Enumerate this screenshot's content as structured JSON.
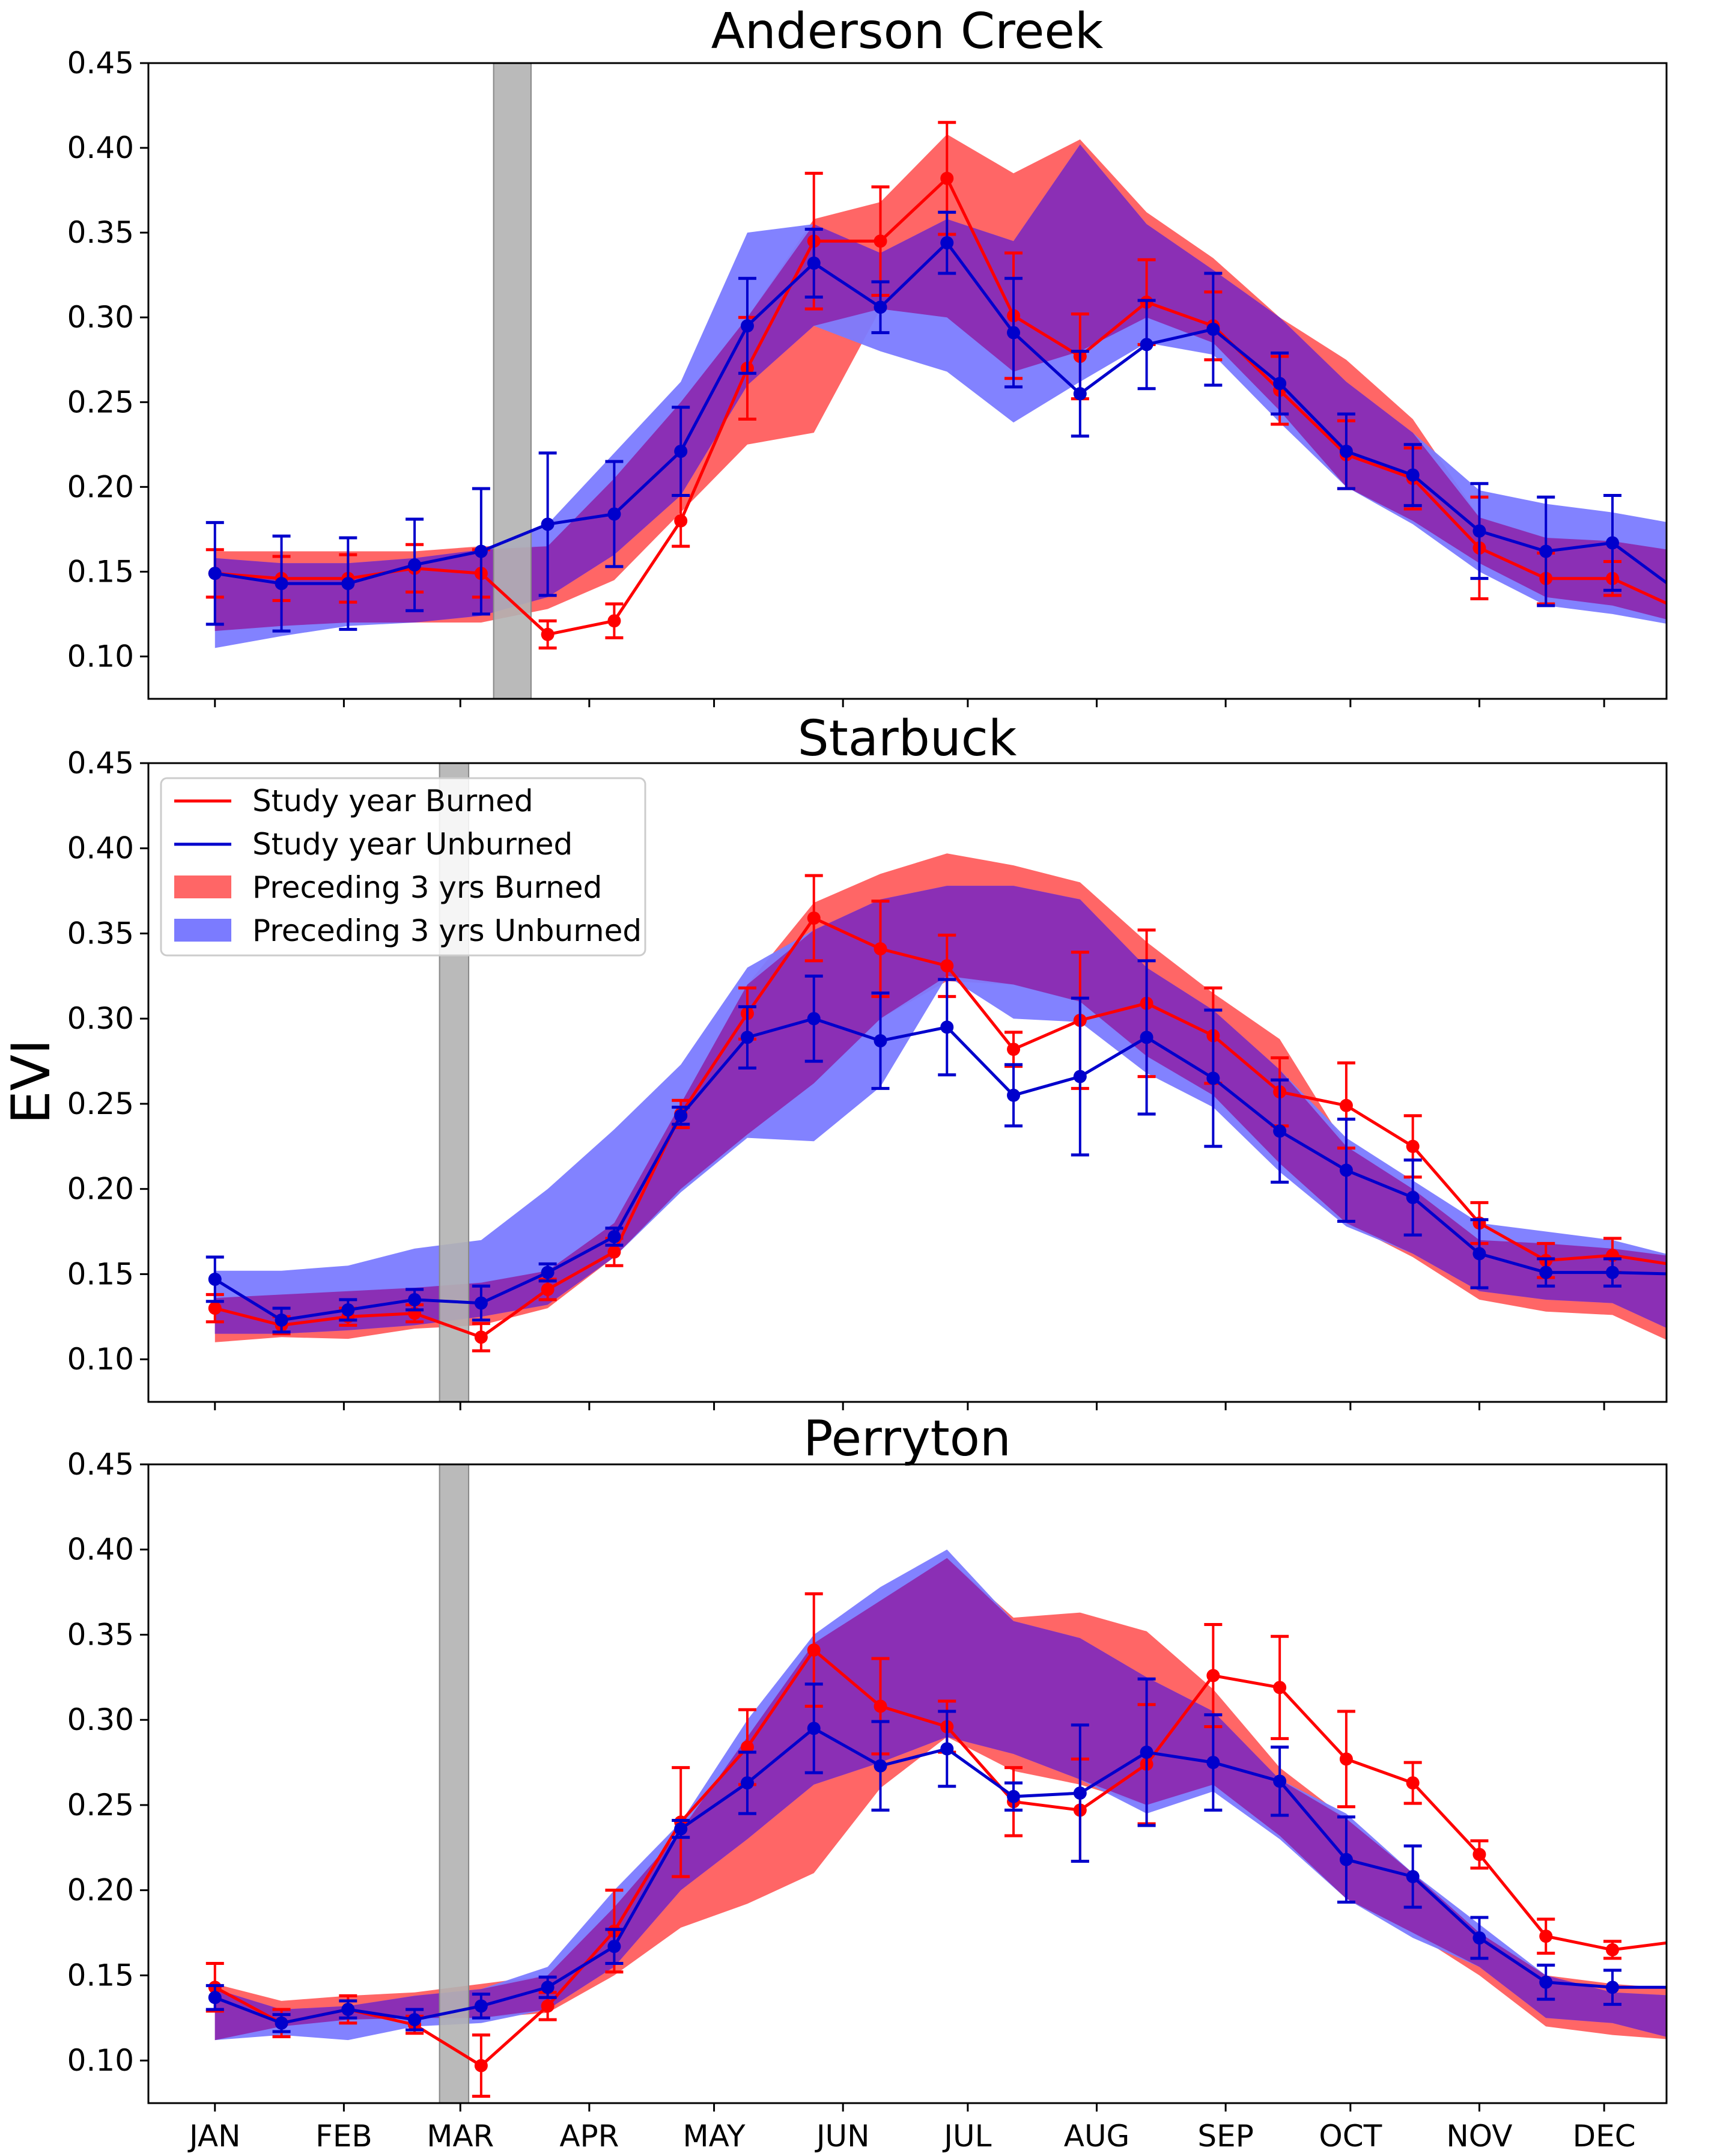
{
  "figure": {
    "ylabel": "EVI",
    "months": [
      "JAN",
      "FEB",
      "MAR",
      "APR",
      "MAY",
      "JUN",
      "JUL",
      "AUG",
      "SEP",
      "OCT",
      "NOV",
      "DEC"
    ],
    "month_doy": [
      1,
      32,
      60,
      91,
      121,
      152,
      182,
      213,
      244,
      274,
      305,
      335
    ],
    "y_ticks": [
      "0.10",
      "0.15",
      "0.20",
      "0.25",
      "0.30",
      "0.35",
      "0.40",
      "0.45"
    ]
  },
  "legend": {
    "items": [
      {
        "label": "Study year Burned",
        "kind": "line",
        "color": "#ff0000"
      },
      {
        "label": "Study year Unburned",
        "kind": "line",
        "color": "#0000cc"
      },
      {
        "label": "Preceding 3 yrs Burned",
        "kind": "patch",
        "color": "#ff6666"
      },
      {
        "label": "Preceding 3 yrs Unburned",
        "kind": "patch",
        "color": "#7b7bff"
      }
    ]
  },
  "colors": {
    "burned_line": "#ff0000",
    "unburned_line": "#0000cc",
    "burned_band": "#ff6666",
    "unburned_band": "#7b7bff",
    "overlap_band": "#8b2fb5",
    "fire_band": "#b3b3b3"
  },
  "chart_data": [
    {
      "type": "line",
      "title": "Anderson Creek",
      "xlabel": "",
      "ylabel": "EVI",
      "ylim": [
        0.075,
        0.45
      ],
      "xlim": [
        -15,
        350
      ],
      "fire_window": [
        68,
        77
      ],
      "x": [
        1,
        17,
        33,
        49,
        65,
        81,
        97,
        113,
        129,
        145,
        161,
        177,
        193,
        209,
        225,
        241,
        257,
        273,
        289,
        305,
        321,
        337,
        353
      ],
      "series": [
        {
          "name": "Study year Burned",
          "values": [
            0.149,
            0.146,
            0.146,
            0.152,
            0.149,
            0.113,
            0.121,
            0.18,
            0.27,
            0.345,
            0.345,
            0.382,
            0.301,
            0.277,
            0.309,
            0.295,
            0.257,
            0.219,
            0.205,
            0.164,
            0.146,
            0.146,
            0.128
          ],
          "err": [
            0.014,
            0.013,
            0.014,
            0.014,
            0.014,
            0.008,
            0.01,
            0.015,
            0.03,
            0.04,
            0.032,
            0.033,
            0.037,
            0.025,
            0.025,
            0.02,
            0.02,
            0.02,
            0.018,
            0.03,
            0.015,
            0.01,
            0.008
          ]
        },
        {
          "name": "Study year Unburned",
          "values": [
            0.149,
            0.143,
            0.143,
            0.154,
            0.162,
            0.178,
            0.184,
            0.221,
            0.295,
            0.332,
            0.306,
            0.344,
            0.291,
            0.255,
            0.284,
            0.293,
            0.261,
            0.221,
            0.207,
            0.174,
            0.162,
            0.167,
            0.138
          ],
          "err": [
            0.03,
            0.028,
            0.027,
            0.027,
            0.037,
            0.042,
            0.031,
            0.026,
            0.028,
            0.02,
            0.015,
            0.018,
            0.032,
            0.025,
            0.026,
            0.033,
            0.018,
            0.022,
            0.018,
            0.028,
            0.032,
            0.028,
            0.022
          ]
        },
        {
          "name": "Preceding 3 yrs Burned",
          "lower": [
            0.115,
            0.118,
            0.12,
            0.12,
            0.12,
            0.128,
            0.145,
            0.185,
            0.225,
            0.232,
            0.305,
            0.3,
            0.268,
            0.28,
            0.3,
            0.285,
            0.245,
            0.2,
            0.18,
            0.155,
            0.135,
            0.13,
            0.12
          ],
          "upper": [
            0.162,
            0.162,
            0.162,
            0.162,
            0.165,
            0.165,
            0.205,
            0.25,
            0.3,
            0.358,
            0.368,
            0.408,
            0.385,
            0.405,
            0.362,
            0.335,
            0.3,
            0.275,
            0.24,
            0.182,
            0.17,
            0.168,
            0.162
          ]
        },
        {
          "name": "Preceding 3 yrs Unburned",
          "lower": [
            0.105,
            0.112,
            0.118,
            0.12,
            0.124,
            0.135,
            0.16,
            0.195,
            0.26,
            0.295,
            0.28,
            0.268,
            0.238,
            0.262,
            0.285,
            0.278,
            0.238,
            0.2,
            0.178,
            0.15,
            0.13,
            0.125,
            0.118
          ],
          "upper": [
            0.158,
            0.155,
            0.155,
            0.158,
            0.163,
            0.178,
            0.22,
            0.262,
            0.35,
            0.355,
            0.338,
            0.358,
            0.345,
            0.402,
            0.355,
            0.328,
            0.3,
            0.262,
            0.232,
            0.198,
            0.19,
            0.185,
            0.178
          ]
        }
      ]
    },
    {
      "type": "line",
      "title": "Starbuck",
      "xlabel": "",
      "ylabel": "EVI",
      "ylim": [
        0.075,
        0.45
      ],
      "xlim": [
        -15,
        350
      ],
      "fire_window": [
        55,
        62
      ],
      "x": [
        1,
        17,
        33,
        49,
        65,
        81,
        97,
        113,
        129,
        145,
        161,
        177,
        193,
        209,
        225,
        241,
        257,
        273,
        289,
        305,
        321,
        337,
        353
      ],
      "series": [
        {
          "name": "Study year Burned",
          "values": [
            0.13,
            0.12,
            0.125,
            0.127,
            0.113,
            0.141,
            0.163,
            0.244,
            0.303,
            0.359,
            0.341,
            0.331,
            0.282,
            0.299,
            0.309,
            0.29,
            0.257,
            0.249,
            0.225,
            0.18,
            0.158,
            0.161,
            0.155
          ],
          "err": [
            0.008,
            0.005,
            0.005,
            0.005,
            0.008,
            0.006,
            0.008,
            0.008,
            0.015,
            0.025,
            0.028,
            0.018,
            0.01,
            0.04,
            0.043,
            0.028,
            0.02,
            0.025,
            0.018,
            0.012,
            0.01,
            0.01,
            0.008
          ]
        },
        {
          "name": "Study year Unburned",
          "values": [
            0.147,
            0.123,
            0.129,
            0.135,
            0.133,
            0.151,
            0.172,
            0.243,
            0.289,
            0.3,
            0.287,
            0.295,
            0.255,
            0.266,
            0.289,
            0.265,
            0.234,
            0.211,
            0.195,
            0.162,
            0.151,
            0.151,
            0.15
          ],
          "err": [
            0.013,
            0.007,
            0.006,
            0.006,
            0.01,
            0.005,
            0.005,
            0.005,
            0.018,
            0.025,
            0.028,
            0.028,
            0.018,
            0.046,
            0.045,
            0.04,
            0.03,
            0.03,
            0.022,
            0.02,
            0.008,
            0.008,
            0.01
          ]
        },
        {
          "name": "Preceding 3 yrs Burned",
          "lower": [
            0.11,
            0.113,
            0.112,
            0.118,
            0.12,
            0.13,
            0.16,
            0.2,
            0.232,
            0.262,
            0.3,
            0.322,
            0.32,
            0.31,
            0.278,
            0.255,
            0.215,
            0.18,
            0.16,
            0.135,
            0.128,
            0.126,
            0.108
          ],
          "upper": [
            0.136,
            0.138,
            0.14,
            0.142,
            0.145,
            0.152,
            0.18,
            0.25,
            0.32,
            0.368,
            0.385,
            0.397,
            0.39,
            0.38,
            0.345,
            0.315,
            0.288,
            0.225,
            0.2,
            0.17,
            0.168,
            0.165,
            0.16
          ]
        },
        {
          "name": "Preceding 3 yrs Unburned",
          "lower": [
            0.115,
            0.115,
            0.117,
            0.12,
            0.125,
            0.132,
            0.16,
            0.198,
            0.23,
            0.228,
            0.26,
            0.325,
            0.3,
            0.298,
            0.268,
            0.248,
            0.21,
            0.178,
            0.162,
            0.14,
            0.135,
            0.133,
            0.115
          ],
          "upper": [
            0.152,
            0.152,
            0.155,
            0.165,
            0.17,
            0.2,
            0.235,
            0.273,
            0.33,
            0.352,
            0.37,
            0.378,
            0.378,
            0.37,
            0.33,
            0.305,
            0.27,
            0.23,
            0.205,
            0.18,
            0.175,
            0.17,
            0.16
          ]
        }
      ]
    },
    {
      "type": "line",
      "title": "Perryton",
      "xlabel": "",
      "ylabel": "EVI",
      "ylim": [
        0.075,
        0.45
      ],
      "xlim": [
        -15,
        350
      ],
      "fire_window": [
        55,
        62
      ],
      "x": [
        1,
        17,
        33,
        49,
        65,
        81,
        97,
        113,
        129,
        145,
        161,
        177,
        193,
        209,
        225,
        241,
        257,
        273,
        289,
        305,
        321,
        337,
        353
      ],
      "series": [
        {
          "name": "Study year Burned",
          "values": [
            0.143,
            0.122,
            0.13,
            0.121,
            0.097,
            0.132,
            0.176,
            0.24,
            0.284,
            0.341,
            0.308,
            0.296,
            0.252,
            0.247,
            0.274,
            0.326,
            0.319,
            0.277,
            0.263,
            0.221,
            0.173,
            0.165,
            0.17
          ],
          "err": [
            0.014,
            0.008,
            0.008,
            0.005,
            0.018,
            0.008,
            0.024,
            0.032,
            0.022,
            0.033,
            0.028,
            0.015,
            0.02,
            0.03,
            0.035,
            0.03,
            0.03,
            0.028,
            0.012,
            0.008,
            0.01,
            0.005,
            0.007
          ]
        },
        {
          "name": "Study year Unburned",
          "values": [
            0.137,
            0.122,
            0.13,
            0.124,
            0.132,
            0.143,
            0.167,
            0.236,
            0.263,
            0.295,
            0.273,
            0.283,
            0.255,
            0.257,
            0.281,
            0.275,
            0.264,
            0.218,
            0.208,
            0.172,
            0.146,
            0.143,
            0.143
          ],
          "err": [
            0.007,
            0.005,
            0.005,
            0.006,
            0.007,
            0.006,
            0.01,
            0.005,
            0.018,
            0.026,
            0.026,
            0.022,
            0.008,
            0.04,
            0.043,
            0.028,
            0.02,
            0.025,
            0.018,
            0.012,
            0.01,
            0.01,
            0.008
          ]
        },
        {
          "name": "Preceding 3 yrs Burned",
          "lower": [
            0.112,
            0.12,
            0.124,
            0.125,
            0.125,
            0.128,
            0.15,
            0.178,
            0.192,
            0.21,
            0.26,
            0.29,
            0.27,
            0.262,
            0.25,
            0.262,
            0.232,
            0.195,
            0.175,
            0.15,
            0.12,
            0.115,
            0.112
          ],
          "upper": [
            0.145,
            0.135,
            0.138,
            0.14,
            0.145,
            0.15,
            0.19,
            0.235,
            0.29,
            0.345,
            0.37,
            0.395,
            0.36,
            0.363,
            0.352,
            0.318,
            0.272,
            0.242,
            0.21,
            0.175,
            0.15,
            0.145,
            0.142
          ]
        },
        {
          "name": "Preceding 3 yrs Unburned",
          "lower": [
            0.112,
            0.115,
            0.112,
            0.12,
            0.122,
            0.13,
            0.155,
            0.2,
            0.23,
            0.262,
            0.275,
            0.29,
            0.28,
            0.265,
            0.245,
            0.258,
            0.23,
            0.195,
            0.172,
            0.155,
            0.125,
            0.122,
            0.112
          ],
          "upper": [
            0.142,
            0.13,
            0.132,
            0.138,
            0.142,
            0.155,
            0.2,
            0.24,
            0.3,
            0.35,
            0.378,
            0.4,
            0.358,
            0.348,
            0.325,
            0.305,
            0.265,
            0.245,
            0.21,
            0.18,
            0.15,
            0.14,
            0.138
          ]
        }
      ]
    }
  ]
}
